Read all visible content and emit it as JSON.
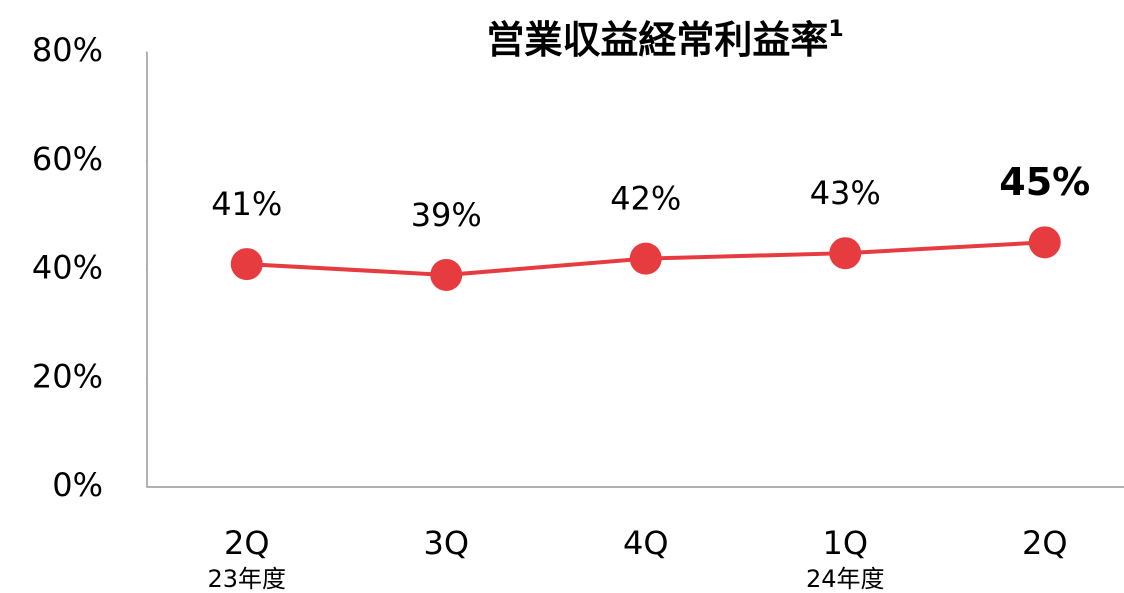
{
  "chart_data": {
    "type": "line",
    "title": "営業収益経常利益率",
    "title_footnote": "1",
    "categories": [
      "2Q",
      "3Q",
      "4Q",
      "1Q",
      "2Q"
    ],
    "category_groups": [
      "23年度",
      null,
      null,
      "24年度",
      null
    ],
    "series": [
      {
        "name": "営業収益経常利益率",
        "color": "#e63c40",
        "values": [
          41,
          39,
          42,
          43,
          45
        ],
        "value_labels": [
          "41%",
          "39%",
          "42%",
          "43%",
          "45%"
        ]
      }
    ],
    "emphasis_index": 4,
    "ylim": [
      0,
      80
    ],
    "yticks": [
      {
        "value": 0,
        "label": "0%"
      },
      {
        "value": 20,
        "label": "20%"
      },
      {
        "value": 40,
        "label": "40%"
      },
      {
        "value": 60,
        "label": "60%"
      },
      {
        "value": 80,
        "label": "80%"
      }
    ],
    "grid": false
  }
}
